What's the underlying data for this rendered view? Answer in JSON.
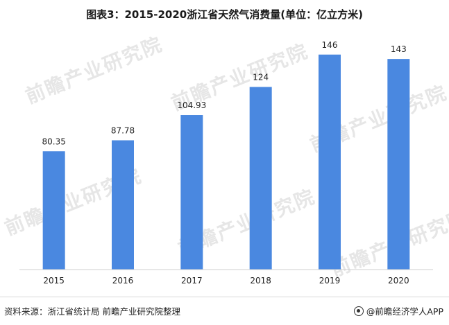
{
  "title": "图表3：2015-2020浙江省天然气消费量(单位：亿立方米)",
  "chart_data": {
    "type": "bar",
    "categories": [
      "2015",
      "2016",
      "2017",
      "2018",
      "2019",
      "2020"
    ],
    "values": [
      80.35,
      87.78,
      104.93,
      124,
      146,
      143
    ],
    "value_labels": [
      "80.35",
      "87.78",
      "104.93",
      "124",
      "146",
      "143"
    ],
    "title": "图表3：2015-2020浙江省天然气消费量(单位：亿立方米)",
    "xlabel": "",
    "ylabel": "",
    "ylim": [
      0,
      160
    ],
    "grid": false,
    "bar_color": "#4a88e0"
  },
  "footer": {
    "source": "资料来源：浙江省统计局 前瞻产业研究院整理",
    "brand": "@前瞻经济学人APP"
  },
  "watermark": "前瞻产业研究院"
}
